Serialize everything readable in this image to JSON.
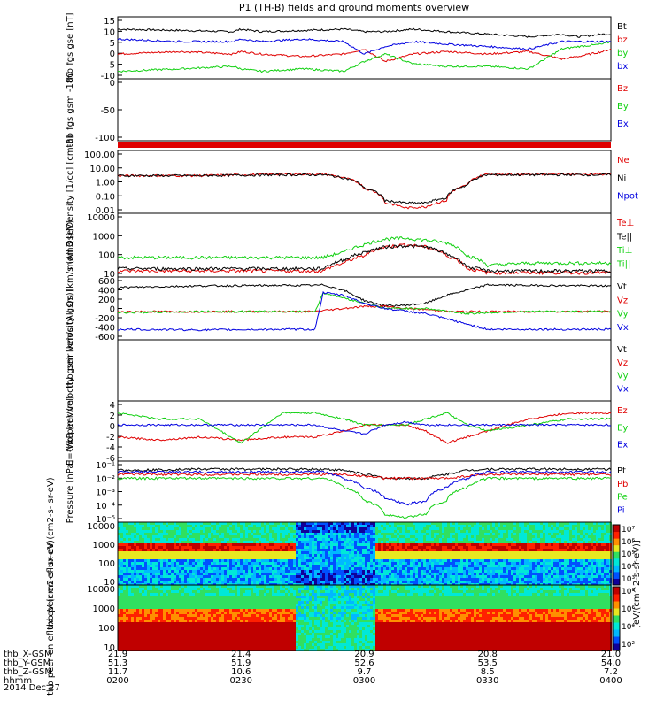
{
  "title": "P1 (TH-B) fields and ground moments overview",
  "date": "2014 Dec 27",
  "colors": {
    "black": "#000000",
    "red": "#e00000",
    "green": "#10d010",
    "blue": "#0000e0"
  },
  "chart_data": [
    {
      "type": "line",
      "panel": "fgs_gse",
      "ylabel": [
        "thb",
        "fgs",
        "gse",
        "[nT]"
      ],
      "yticks": [
        "15",
        "10",
        "5",
        "0",
        "-5",
        "-10"
      ],
      "ylim": [
        -10,
        15
      ],
      "legend": [
        {
          "name": "Bt",
          "color": "black"
        },
        {
          "name": "bz",
          "color": "red"
        },
        {
          "name": "by",
          "color": "green"
        },
        {
          "name": "bx",
          "color": "blue"
        }
      ],
      "x": [
        0,
        15,
        28,
        30,
        35,
        45,
        55,
        60,
        65,
        72,
        80,
        90,
        100,
        108,
        112,
        118,
        120
      ],
      "series": [
        {
          "name": "Bt",
          "values": [
            10,
            9.5,
            9,
            10,
            9,
            9.5,
            10,
            9,
            9,
            10,
            9,
            8,
            7,
            8,
            7,
            8,
            8
          ]
        },
        {
          "name": "bz",
          "values": [
            0,
            1,
            0,
            1,
            0,
            -1,
            0,
            2,
            -3,
            0,
            1,
            0,
            1,
            -2,
            -1,
            1,
            2
          ]
        },
        {
          "name": "by",
          "values": [
            -7,
            -6,
            -5,
            -6,
            -7,
            -6,
            -7,
            -3,
            0,
            -4,
            -5,
            -5,
            -6,
            2,
            3,
            4,
            5
          ]
        },
        {
          "name": "bx",
          "values": [
            6,
            5,
            5,
            6,
            5,
            6,
            5,
            0,
            3,
            5,
            4,
            3,
            2,
            5,
            5,
            5,
            5
          ]
        }
      ]
    },
    {
      "type": "line",
      "panel": "fgs_gsm",
      "ylabel": [
        "thb",
        "fgs",
        "gsm",
        "-180"
      ],
      "yticks": [
        "0",
        "-50",
        "-100"
      ],
      "ylim": [
        -130,
        20
      ],
      "legend": [
        {
          "name": "Bz",
          "color": "red"
        },
        {
          "name": "By",
          "color": "green"
        },
        {
          "name": "Bx",
          "color": "blue"
        }
      ]
    },
    {
      "type": "line",
      "panel": "density",
      "ylabel": [
        "Density",
        "[1/cc]",
        "[cm-3]"
      ],
      "yticks": [
        "100.00",
        "10.00",
        "1.00",
        "0.10",
        "0.01"
      ],
      "ylim": [
        0.003,
        300
      ],
      "legend": [
        {
          "name": "Ne",
          "color": "red"
        },
        {
          "name": "Ni",
          "color": "black"
        },
        {
          "name": "Npot",
          "color": "blue"
        }
      ],
      "x": [
        0,
        20,
        40,
        50,
        55,
        60,
        65,
        70,
        75,
        80,
        85,
        90,
        100,
        120
      ],
      "series": [
        {
          "name": "Ne",
          "values": [
            3,
            3,
            4,
            4,
            2,
            0.3,
            0.02,
            0.008,
            0.01,
            0.03,
            0.5,
            4,
            4,
            4
          ]
        },
        {
          "name": "Ni",
          "values": [
            3,
            3,
            3.5,
            3.5,
            2,
            0.3,
            0.03,
            0.02,
            0.02,
            0.05,
            0.5,
            3.5,
            3.5,
            3.5
          ]
        }
      ]
    },
    {
      "type": "line",
      "panel": "temperature",
      "ylabel": [
        "mom3",
        "[eV]"
      ],
      "yticks": [
        "10000",
        "1000",
        "100",
        "10"
      ],
      "ylim": [
        7,
        20000
      ],
      "legend": [
        {
          "name": "Te⊥",
          "color": "red"
        },
        {
          "name": "Te||",
          "color": "black"
        },
        {
          "name": "Ti⊥",
          "color": "green"
        },
        {
          "name": "Ti||",
          "color": "green"
        }
      ],
      "x": [
        0,
        20,
        40,
        50,
        55,
        60,
        65,
        70,
        75,
        80,
        85,
        90,
        100,
        120
      ],
      "series": [
        {
          "name": "Ti⊥",
          "values": [
            80,
            80,
            80,
            80,
            150,
            400,
            800,
            900,
            700,
            500,
            100,
            30,
            40,
            40
          ]
        },
        {
          "name": "Te⊥",
          "values": [
            15,
            15,
            15,
            15,
            40,
            100,
            300,
            400,
            300,
            100,
            20,
            12,
            12,
            12
          ]
        },
        {
          "name": "Te||",
          "values": [
            20,
            20,
            20,
            20,
            60,
            150,
            300,
            350,
            300,
            120,
            25,
            15,
            15,
            15
          ]
        }
      ]
    },
    {
      "type": "line",
      "panel": "velocity_gsm",
      "ylabel": [
        "thb",
        "peir",
        "velocity",
        "gsm",
        "[km/s (All Qs)]"
      ],
      "yticks": [
        "600",
        "400",
        "200",
        "0",
        "-200",
        "-400",
        "-600"
      ],
      "ylim": [
        -600,
        600
      ],
      "legend": [
        {
          "name": "Vt",
          "color": "black"
        },
        {
          "name": "Vz",
          "color": "red"
        },
        {
          "name": "Vy",
          "color": "green"
        },
        {
          "name": "Vx",
          "color": "blue"
        }
      ],
      "x": [
        0,
        20,
        40,
        48,
        50,
        55,
        60,
        65,
        70,
        75,
        80,
        85,
        90,
        100,
        120
      ],
      "series": [
        {
          "name": "Vt",
          "values": [
            400,
            430,
            440,
            440,
            450,
            350,
            150,
            50,
            60,
            100,
            250,
            350,
            450,
            440,
            430
          ]
        },
        {
          "name": "Vz",
          "values": [
            -60,
            -60,
            -60,
            -60,
            -40,
            0,
            40,
            40,
            0,
            -20,
            -60,
            -60,
            -60,
            -60,
            -60
          ]
        },
        {
          "name": "Vy",
          "values": [
            -80,
            -60,
            -60,
            -60,
            300,
            200,
            100,
            0,
            0,
            0,
            -50,
            -100,
            -80,
            -60,
            -60
          ]
        },
        {
          "name": "Vx",
          "values": [
            -400,
            -410,
            -400,
            -400,
            300,
            250,
            100,
            0,
            -50,
            -100,
            -200,
            -300,
            -400,
            -400,
            -400
          ]
        }
      ]
    },
    {
      "type": "line",
      "panel": "velocity_gsm_peer",
      "ylabel": [
        "thb",
        "peer",
        "velocity",
        "gsm",
        "[km/s (All Qs)]"
      ],
      "yticks": [],
      "legend": [
        {
          "name": "Vt",
          "color": "black"
        },
        {
          "name": "Vz",
          "color": "red"
        },
        {
          "name": "Vy",
          "color": "green"
        },
        {
          "name": "Vx",
          "color": "blue"
        }
      ]
    },
    {
      "type": "line",
      "panel": "efield",
      "ylabel": [
        "E=-VxB",
        "[mV/m]"
      ],
      "yticks": [
        "4",
        "2",
        "0",
        "-2",
        "-4",
        "-6"
      ],
      "ylim": [
        -6,
        4
      ],
      "legend": [
        {
          "name": "Ez",
          "color": "red"
        },
        {
          "name": "Ey",
          "color": "green"
        },
        {
          "name": "Ex",
          "color": "blue"
        }
      ],
      "x": [
        0,
        10,
        20,
        30,
        40,
        48,
        55,
        60,
        65,
        70,
        75,
        80,
        85,
        90,
        100,
        110,
        120
      ],
      "series": [
        {
          "name": "Ez",
          "values": [
            -2,
            -2.5,
            -2,
            -2.5,
            -2,
            -2,
            -1,
            0,
            0,
            0,
            -1,
            -3,
            -2,
            -1,
            1,
            2,
            2
          ]
        },
        {
          "name": "Ey",
          "values": [
            2,
            1,
            1,
            -3,
            2,
            2,
            1,
            0,
            0,
            0,
            1,
            2,
            0,
            -1,
            0,
            1,
            1
          ]
        },
        {
          "name": "Ex",
          "values": [
            0,
            0,
            0,
            0,
            0,
            0,
            -1,
            -1.5,
            0,
            0.5,
            0,
            0,
            0,
            0,
            0,
            0,
            0
          ]
        }
      ]
    },
    {
      "type": "line",
      "panel": "pressure",
      "ylabel": [
        "Pressure",
        "[nPa]"
      ],
      "yticks": [
        "10⁻¹",
        "10⁻²",
        "10⁻³",
        "10⁻⁴",
        "10⁻⁵"
      ],
      "ylim": [
        5e-06,
        0.2
      ],
      "legend": [
        {
          "name": "Pt",
          "color": "black"
        },
        {
          "name": "Pb",
          "color": "red"
        },
        {
          "name": "Pe",
          "color": "green"
        },
        {
          "name": "Pi",
          "color": "blue"
        }
      ],
      "x": [
        0,
        20,
        40,
        50,
        55,
        60,
        65,
        70,
        75,
        80,
        85,
        90,
        100,
        120
      ],
      "series": [
        {
          "name": "Pt",
          "values": [
            0.04,
            0.05,
            0.05,
            0.05,
            0.04,
            0.02,
            0.01,
            0.01,
            0.01,
            0.02,
            0.04,
            0.05,
            0.05,
            0.05
          ]
        },
        {
          "name": "Pb",
          "values": [
            0.02,
            0.02,
            0.02,
            0.02,
            0.02,
            0.015,
            0.01,
            0.01,
            0.01,
            0.01,
            0.015,
            0.02,
            0.02,
            0.02
          ]
        },
        {
          "name": "Pe",
          "values": [
            0.01,
            0.01,
            0.01,
            0.01,
            0.002,
            0.0002,
            2e-05,
            1e-05,
            2e-05,
            0.0002,
            0.002,
            0.01,
            0.01,
            0.01
          ]
        },
        {
          "name": "Pi",
          "values": [
            0.03,
            0.03,
            0.03,
            0.03,
            0.01,
            0.002,
            0.0003,
            0.0001,
            0.0002,
            0.002,
            0.01,
            0.03,
            0.03,
            0.03
          ]
        }
      ]
    },
    {
      "type": "heatmap",
      "panel": "peir_spectrogram",
      "ylabel": [
        "thb",
        "peir",
        "en",
        "eflux",
        "eV",
        "(cm2-s-",
        "sr-eV)"
      ],
      "yticks": [
        "10000",
        "1000",
        "100",
        "10"
      ],
      "colorbar_label": "[eV/(cm2-s-sr-eV)]",
      "colorbar_ticks": [
        "10⁷",
        "10⁶",
        "10⁵",
        "10⁴",
        "10³"
      ]
    },
    {
      "type": "heatmap",
      "panel": "peer_spectrogram",
      "ylabel": [
        "thb",
        "peer",
        "en",
        "eflux",
        "eV",
        "(cm2-s-",
        "sr-eV)"
      ],
      "yticks": [
        "10000",
        "1000",
        "100",
        "10"
      ],
      "colorbar_label": "[eV/(cm2-s-sr-eV)]",
      "colorbar_ticks": [
        "10⁸",
        "10⁶",
        "10⁴",
        "10²"
      ]
    }
  ],
  "xaxis": {
    "rows": [
      {
        "label": "thb_X-GSM",
        "values": [
          "21.9",
          "21.4",
          "20.9",
          "20.8",
          "21.0"
        ]
      },
      {
        "label": "thb_Y-GSM",
        "values": [
          "51.3",
          "51.9",
          "52.6",
          "53.5",
          "54.0"
        ]
      },
      {
        "label": "thb_Z-GSM",
        "values": [
          "11.7",
          "10.6",
          "9.7",
          "8.5",
          "7.2"
        ]
      },
      {
        "label": "hhmm",
        "values": [
          "0200",
          "0230",
          "0300",
          "0330",
          "0400"
        ]
      }
    ]
  },
  "right_labels": {
    "units": "[eV/(cm^2-s-sr-eV)] [eV/(cm^2-s-sr-eV)]"
  }
}
